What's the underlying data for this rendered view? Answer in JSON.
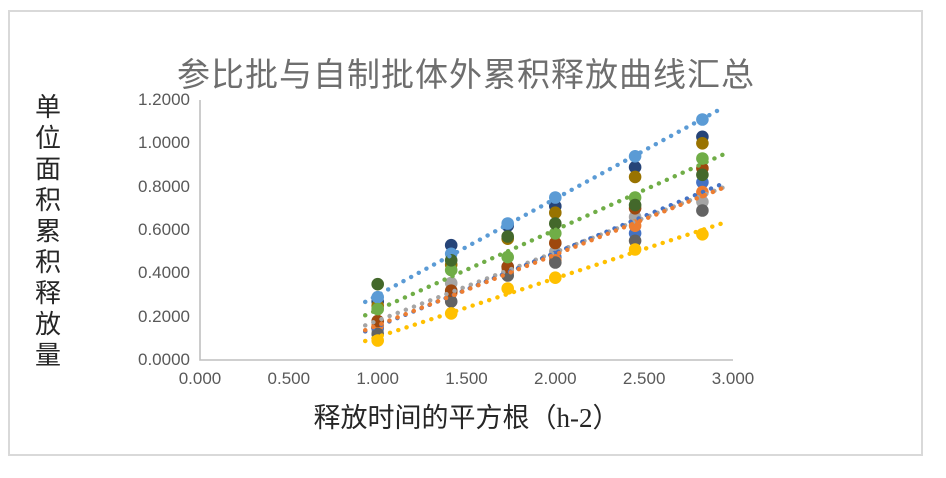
{
  "frame": {
    "border_color": "#D9D9D9",
    "background": "#FFFFFF"
  },
  "palette": {
    "axis_line": "#BFBFBF",
    "tick_text": "#595959",
    "title_text": "#6E6E6E",
    "axis_title_text": "#262626"
  },
  "chart_data": {
    "type": "scatter",
    "title": "参比批与自制批体外累积释放曲线汇总",
    "xlabel": "释放时间的平方根（h-2）",
    "ylabel": "单位面积累积释放量",
    "xlim": [
      0,
      3.0
    ],
    "ylim": [
      0,
      1.2
    ],
    "x_ticks": [
      "0.000",
      "0.500",
      "1.000",
      "1.500",
      "2.000",
      "2.500",
      "3.000"
    ],
    "y_ticks": [
      "0.0000",
      "0.2000",
      "0.4000",
      "0.6000",
      "0.8000",
      "1.0000",
      "1.2000"
    ],
    "grid": false,
    "legend_position": "none",
    "marker": "circle",
    "trendline_style": "dotted-linear",
    "x": [
      1.0,
      1.414,
      1.732,
      2.0,
      2.449,
      2.828
    ],
    "series": [
      {
        "name": "gray",
        "color": "#A5A5A5",
        "trendline": true,
        "values": [
          0.14,
          0.355,
          0.42,
          0.5,
          0.66,
          0.73
        ]
      },
      {
        "name": "blue",
        "color": "#4472C4",
        "trendline": true,
        "values": [
          0.15,
          0.31,
          0.43,
          0.475,
          0.585,
          0.82
        ]
      },
      {
        "name": "orange",
        "color": "#ED7D31",
        "trendline": true,
        "values": [
          0.16,
          0.31,
          0.405,
          0.46,
          0.62,
          0.775
        ]
      },
      {
        "name": "dark-gray",
        "color": "#636363",
        "trendline": false,
        "values": [
          0.12,
          0.27,
          0.39,
          0.45,
          0.55,
          0.69
        ]
      },
      {
        "name": "navy",
        "color": "#264478",
        "trendline": false,
        "values": [
          0.27,
          0.53,
          0.62,
          0.71,
          0.89,
          1.03
        ]
      },
      {
        "name": "dark-orange",
        "color": "#9E480E",
        "trendline": false,
        "values": [
          0.18,
          0.32,
          0.43,
          0.54,
          0.7,
          0.885
        ]
      },
      {
        "name": "dark-gold",
        "color": "#997300",
        "trendline": false,
        "values": [
          0.25,
          0.44,
          0.56,
          0.68,
          0.845,
          1.0
        ]
      },
      {
        "name": "light-blue",
        "color": "#5B9BD5",
        "trendline": true,
        "values": [
          0.29,
          0.49,
          0.63,
          0.75,
          0.94,
          1.11
        ]
      },
      {
        "name": "green",
        "color": "#70AD47",
        "trendline": true,
        "values": [
          0.235,
          0.415,
          0.475,
          0.585,
          0.75,
          0.93
        ]
      },
      {
        "name": "dark-green",
        "color": "#43682B",
        "trendline": false,
        "values": [
          0.35,
          0.46,
          0.57,
          0.63,
          0.715,
          0.855
        ]
      },
      {
        "name": "yellow",
        "color": "#FFC000",
        "trendline": true,
        "values": [
          0.09,
          0.215,
          0.33,
          0.38,
          0.51,
          0.58
        ]
      }
    ]
  }
}
